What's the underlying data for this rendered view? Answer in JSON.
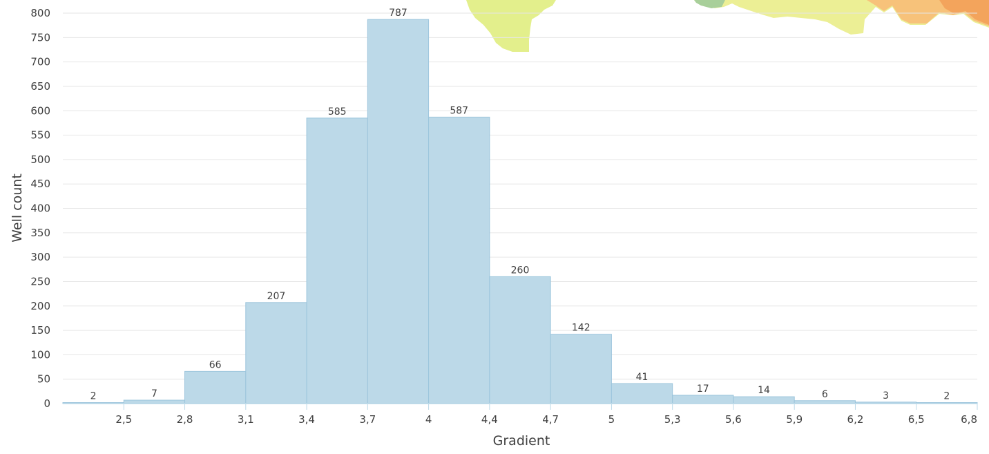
{
  "chart_data": {
    "type": "bar",
    "xlabel": "Gradient",
    "ylabel": "Well count",
    "x_tick_labels": [
      "2,5",
      "2,8",
      "3,1",
      "3,4",
      "3,7",
      "4",
      "4,4",
      "4,7",
      "5",
      "5,3",
      "5,6",
      "5,9",
      "6,2",
      "6,5",
      "6,8"
    ],
    "y_ticks": [
      0,
      50,
      100,
      150,
      200,
      250,
      300,
      350,
      400,
      450,
      500,
      550,
      600,
      650,
      700,
      750,
      800
    ],
    "ylim": [
      0,
      800
    ],
    "grid": true,
    "series": [
      {
        "values": [
          2,
          7,
          66,
          207,
          585,
          787,
          587,
          260,
          142,
          41,
          17,
          14,
          6,
          3,
          2
        ]
      }
    ],
    "bar_color": "#bcd9e8",
    "bar_edge_color": "#9cc5dc"
  }
}
